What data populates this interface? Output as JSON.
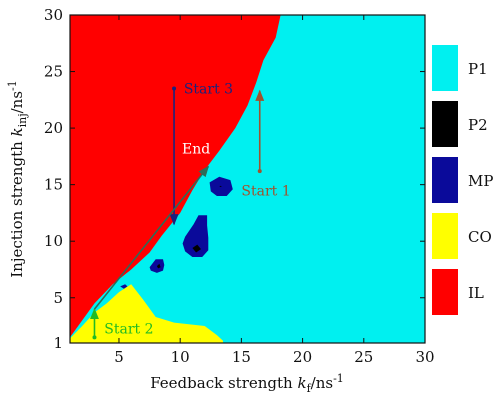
{
  "chart_data": {
    "type": "heatmap",
    "title": "",
    "xlabel": "Feedback strength k_f/ns^-1",
    "ylabel": "Injection strength k_inj/ns^-1",
    "xlim": [
      1,
      30
    ],
    "ylim": [
      1,
      30
    ],
    "xticks": [
      5,
      10,
      15,
      20,
      25,
      30
    ],
    "yticks": [
      1,
      5,
      10,
      15,
      20,
      25,
      30
    ],
    "grid": false,
    "legend_position": "right",
    "legend": [
      {
        "label": "P1",
        "color": "#00f0f0"
      },
      {
        "label": "P2",
        "color": "#000000"
      },
      {
        "label": "MP",
        "color": "#0a0a9a"
      },
      {
        "label": "CO",
        "color": "#ffff00"
      },
      {
        "label": "IL",
        "color": "#ff0000"
      }
    ],
    "regions": {
      "IL": [
        [
          1,
          1.5
        ],
        [
          2,
          3
        ],
        [
          3,
          4.5
        ],
        [
          4.5,
          6.2
        ],
        [
          6,
          7.5
        ],
        [
          7.5,
          9
        ],
        [
          8.5,
          10.5
        ],
        [
          10,
          12.5
        ],
        [
          11,
          14.5
        ],
        [
          12,
          16.3
        ],
        [
          13.2,
          18
        ],
        [
          14.5,
          20
        ],
        [
          15.5,
          22
        ],
        [
          16.2,
          24
        ],
        [
          16.8,
          26
        ],
        [
          17.8,
          28
        ],
        [
          18.2,
          30
        ],
        [
          1,
          30
        ]
      ],
      "CO": [
        [
          1,
          1.4
        ],
        [
          2,
          2.5
        ],
        [
          3,
          3.7
        ],
        [
          4,
          4.5
        ],
        [
          5,
          5.5
        ],
        [
          6,
          6.2
        ],
        [
          7,
          4.8
        ],
        [
          8,
          3.3
        ],
        [
          9.5,
          2.8
        ],
        [
          12,
          2.5
        ],
        [
          13,
          1.7
        ],
        [
          13.5,
          1.2
        ],
        [
          13.5,
          1
        ],
        [
          1,
          1
        ]
      ],
      "MP": [
        [
          [
            7.5,
            7.7
          ],
          [
            8,
            8.4
          ],
          [
            8.6,
            8.4
          ],
          [
            8.7,
            7.9
          ],
          [
            8.6,
            7.4
          ],
          [
            8.1,
            7.2
          ],
          [
            7.6,
            7.4
          ]
        ],
        [
          [
            10.4,
            10.4
          ],
          [
            11.1,
            11.5
          ],
          [
            11.5,
            12.3
          ],
          [
            12.2,
            12.3
          ],
          [
            12.2,
            11.4
          ],
          [
            12.3,
            10.3
          ],
          [
            12.3,
            9.2
          ],
          [
            11.8,
            8.6
          ],
          [
            11,
            8.6
          ],
          [
            10.4,
            9.1
          ],
          [
            10.2,
            9.8
          ]
        ],
        [
          [
            12.4,
            15.2
          ],
          [
            13.2,
            15.7
          ],
          [
            14.1,
            15.4
          ],
          [
            14.3,
            14.6
          ],
          [
            13.8,
            14
          ],
          [
            13,
            14
          ],
          [
            12.5,
            14.4
          ]
        ],
        [
          [
            5.1,
            6
          ],
          [
            5.5,
            6.2
          ],
          [
            5.7,
            6
          ],
          [
            5.4,
            5.8
          ]
        ]
      ],
      "P2": [
        [
          [
            11,
            9.4
          ],
          [
            11.4,
            9.7
          ],
          [
            11.7,
            9.3
          ],
          [
            11.3,
            9
          ]
        ],
        [
          [
            8.1,
            7.8
          ],
          [
            8.3,
            8
          ],
          [
            8.4,
            7.7
          ],
          [
            8.2,
            7.6
          ]
        ],
        [
          [
            13.2,
            14.8
          ],
          [
            13.3,
            14.9
          ],
          [
            13.4,
            14.8
          ]
        ]
      ]
    },
    "trajectories": [
      {
        "label": "Start 1",
        "color": "#a0522d",
        "from": [
          16.5,
          16.2
        ],
        "to": [
          16.5,
          23.3
        ],
        "label_at": [
          15,
          14.5
        ]
      },
      {
        "label": "Start 2",
        "color": "#22bb22",
        "from": [
          3,
          1.5
        ],
        "to": [
          3,
          4
        ],
        "label_at": [
          3.8,
          2.3
        ]
      },
      {
        "label": "Start 3",
        "color": "#1a237e",
        "from": [
          9.5,
          23.5
        ],
        "to": [
          9.5,
          11.5
        ],
        "label_at": [
          10.3,
          23.5
        ]
      },
      {
        "label": "",
        "color": "#2e6b57",
        "from": [
          3,
          4
        ],
        "to": [
          12.3,
          16.6
        ]
      }
    ],
    "annotations": [
      {
        "text": "End",
        "at": [
          11.3,
          18.2
        ],
        "color": "#ffffff"
      }
    ]
  }
}
